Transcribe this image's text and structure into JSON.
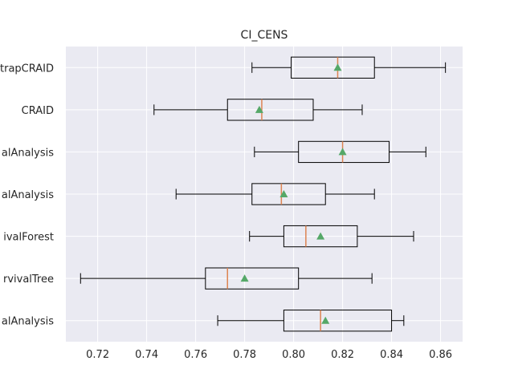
{
  "chart_data": {
    "type": "boxplot",
    "orientation": "horizontal",
    "title": "CI_CENS",
    "xlabel": "",
    "ylabel": "",
    "xlim": [
      0.707,
      0.869
    ],
    "x_ticks": [
      "0.72",
      "0.74",
      "0.76",
      "0.78",
      "0.80",
      "0.82",
      "0.84",
      "0.86"
    ],
    "grid": true,
    "categories": [
      "trapCRAID",
      "CRAID",
      "alAnalysis",
      "alAnalysis",
      "ivalForest",
      "rvivalTree",
      "alAnalysis"
    ],
    "boxes": [
      {
        "whisker_low": 0.783,
        "q1": 0.799,
        "median": 0.818,
        "q3": 0.833,
        "whisker_high": 0.862,
        "mean": 0.818
      },
      {
        "whisker_low": 0.743,
        "q1": 0.773,
        "median": 0.787,
        "q3": 0.808,
        "whisker_high": 0.828,
        "mean": 0.786
      },
      {
        "whisker_low": 0.784,
        "q1": 0.802,
        "median": 0.82,
        "q3": 0.839,
        "whisker_high": 0.854,
        "mean": 0.82
      },
      {
        "whisker_low": 0.752,
        "q1": 0.783,
        "median": 0.795,
        "q3": 0.813,
        "whisker_high": 0.833,
        "mean": 0.796
      },
      {
        "whisker_low": 0.782,
        "q1": 0.796,
        "median": 0.805,
        "q3": 0.826,
        "whisker_high": 0.849,
        "mean": 0.811
      },
      {
        "whisker_low": 0.713,
        "q1": 0.764,
        "median": 0.773,
        "q3": 0.802,
        "whisker_high": 0.832,
        "mean": 0.78
      },
      {
        "whisker_low": 0.769,
        "q1": 0.796,
        "median": 0.811,
        "q3": 0.84,
        "whisker_high": 0.845,
        "mean": 0.813
      }
    ],
    "colors": {
      "background": "#eaeaf2",
      "grid": "#ffffff",
      "box": "#000000",
      "median": "#dd8452",
      "mean": "#55a868"
    }
  }
}
